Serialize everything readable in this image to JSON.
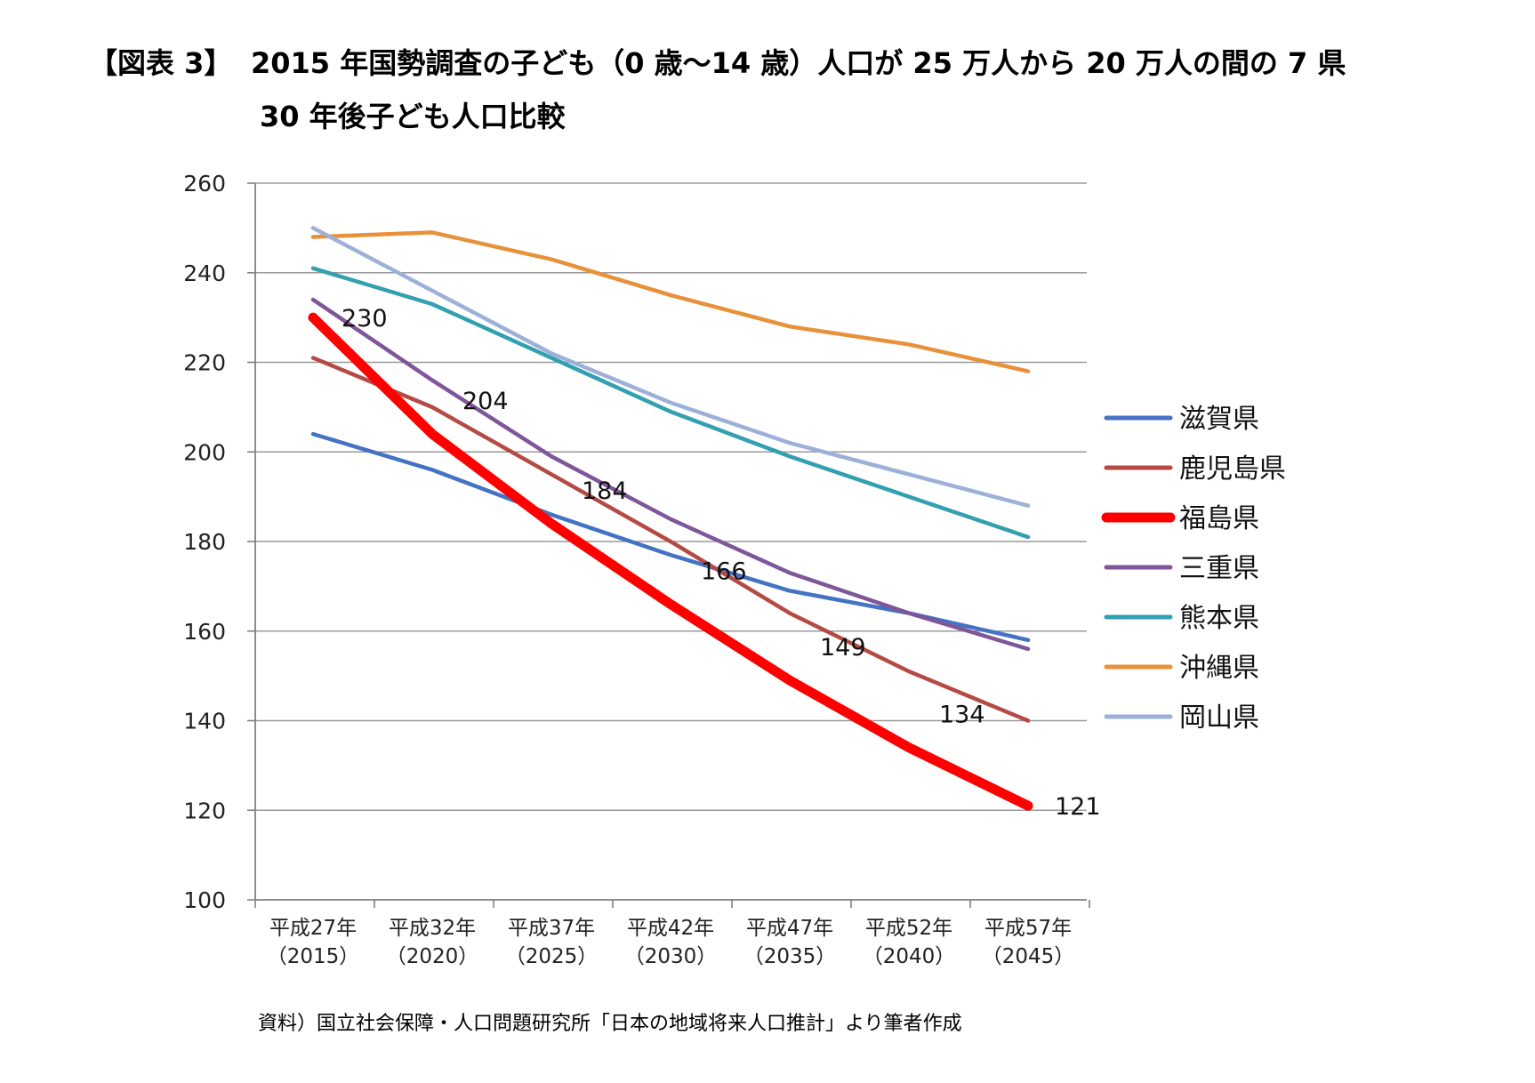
{
  "header": {
    "figure_label": "【図表 3】",
    "title_line1": "2015 年国勢調査の子ども（0 歳〜14 歳）人口が 25 万人から 20 万人の間の 7 県",
    "title_line2": "30 年後子ども人口比較"
  },
  "footer": {
    "source": "資料）国立社会保障・人口問題研究所「日本の地域将来人口推計」より筆者作成"
  },
  "chart_data": {
    "type": "line",
    "title": "",
    "xlabel": "",
    "ylabel": "",
    "ylim": [
      100,
      260
    ],
    "yticks": [
      100,
      120,
      140,
      160,
      180,
      200,
      220,
      240,
      260
    ],
    "grid": true,
    "legend_position": "right",
    "categories": [
      [
        "平成27年",
        "（2015）"
      ],
      [
        "平成32年",
        "（2020）"
      ],
      [
        "平成37年",
        "（2025）"
      ],
      [
        "平成42年",
        "（2030）"
      ],
      [
        "平成47年",
        "（2035）"
      ],
      [
        "平成52年",
        "（2040）"
      ],
      [
        "平成57年",
        "（2045）"
      ]
    ],
    "series": [
      {
        "name": "滋賀県",
        "color": "#4472C4",
        "values": [
          204,
          196,
          186,
          177,
          169,
          164,
          158
        ],
        "highlight": false
      },
      {
        "name": "鹿児島県",
        "color": "#B54A45",
        "values": [
          221,
          210,
          195,
          180,
          164,
          151,
          140
        ],
        "highlight": false
      },
      {
        "name": "福島県",
        "color": "#FF0000",
        "values": [
          230,
          204,
          184,
          166,
          149,
          134,
          121
        ],
        "highlight": true
      },
      {
        "name": "三重県",
        "color": "#7E5699",
        "values": [
          234,
          216,
          199,
          185,
          173,
          164,
          156
        ],
        "highlight": false
      },
      {
        "name": "熊本県",
        "color": "#32A0B0",
        "values": [
          241,
          233,
          221,
          209,
          199,
          190,
          181
        ],
        "highlight": false
      },
      {
        "name": "沖縄県",
        "color": "#E8913A",
        "values": [
          248,
          249,
          243,
          235,
          228,
          224,
          218
        ],
        "highlight": false
      },
      {
        "name": "岡山県",
        "color": "#9DB1D8",
        "values": [
          250,
          236,
          222,
          211,
          202,
          195,
          188
        ],
        "highlight": false
      }
    ],
    "data_labels": {
      "series": "福島県",
      "values": [
        "230",
        "204",
        "184",
        "166",
        "149",
        "134",
        "121"
      ]
    }
  }
}
